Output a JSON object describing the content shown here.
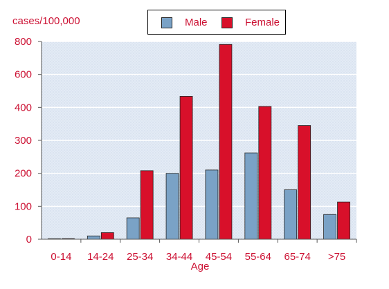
{
  "chart_data": {
    "type": "bar",
    "title": "",
    "ylabel": "cases/100,000",
    "xlabel": "Age",
    "categories": [
      "0-14",
      "14-24",
      "25-34",
      "34-44",
      "45-54",
      "55-64",
      "65-74",
      ">75"
    ],
    "series": [
      {
        "name": "Male",
        "values": [
          0,
          10,
          65,
          200,
          210,
          262,
          150,
          75
        ]
      },
      {
        "name": "Female",
        "values": [
          2,
          20,
          208,
          467,
          782,
          406,
          345,
          113
        ]
      }
    ],
    "ytick_values": [
      0,
      100,
      200,
      300,
      400,
      600,
      800
    ],
    "ytick_labels": [
      "0",
      "100",
      "200",
      "300",
      "400",
      "600",
      "800"
    ],
    "ylim": [
      0,
      800
    ],
    "grid": true,
    "legend_position": "top-center"
  },
  "colors": {
    "male": "#7aa2c6",
    "female": "#d8102a",
    "text": "#cc1133",
    "plot_bg": "#dfe8f3"
  }
}
